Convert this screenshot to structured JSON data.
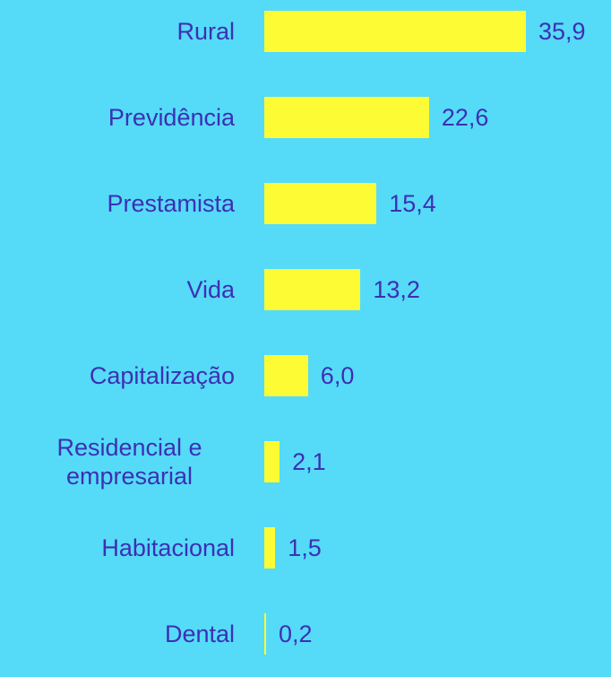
{
  "chart_data": {
    "type": "bar",
    "orientation": "horizontal",
    "categories": [
      "Rural",
      "Previdência",
      "Prestamista",
      "Vida",
      "Capitalização",
      "Residencial e empresarial",
      "Habitacional",
      "Dental"
    ],
    "values": [
      35.9,
      22.6,
      15.4,
      13.2,
      6.0,
      2.1,
      1.5,
      0.2
    ],
    "value_labels": [
      "35,9",
      "22,6",
      "15,4",
      "13,2",
      "6,0",
      "2,1",
      "1,5",
      "0,2"
    ],
    "color": "#fdfb33"
  }
}
